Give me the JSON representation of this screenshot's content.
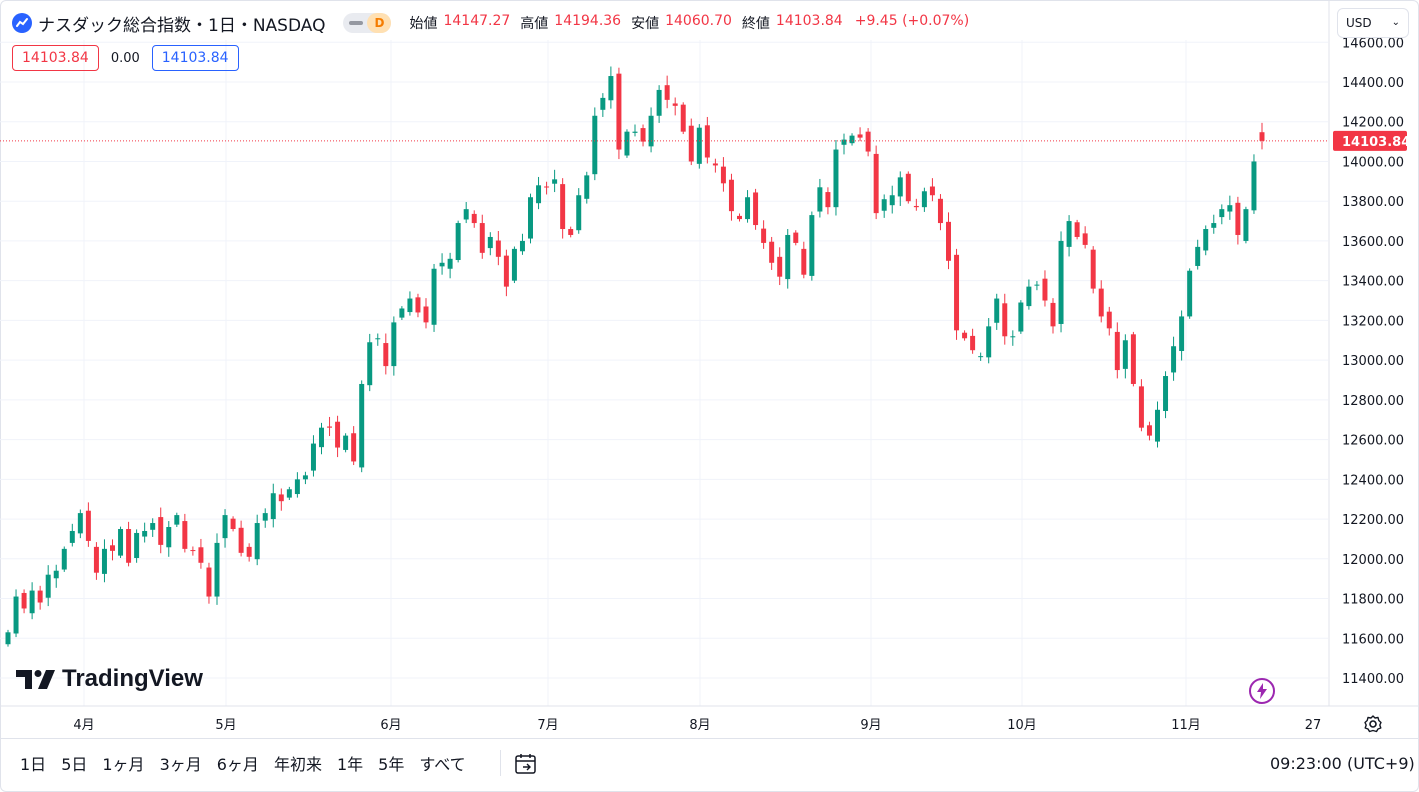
{
  "header": {
    "title": "ナスダック総合指数・1日・NASDAQ",
    "toggle_badge": "D",
    "ohlc": [
      {
        "label": "始値",
        "value": "14147.27"
      },
      {
        "label": "高値",
        "value": "14194.36"
      },
      {
        "label": "安値",
        "value": "14060.70"
      },
      {
        "label": "終値",
        "value": "14103.84"
      }
    ],
    "change": "+9.45 (+0.07%)",
    "currency": "USD"
  },
  "row2": {
    "bid": "14103.84",
    "spread": "0.00",
    "ask": "14103.84"
  },
  "branding": {
    "logo_text": "TradingView"
  },
  "bottom": {
    "ranges": [
      "1日",
      "5日",
      "1ヶ月",
      "3ヶ月",
      "6ヶ月",
      "年初来",
      "1年",
      "5年",
      "すべて"
    ],
    "clock": "09:23:00 (UTC+9)"
  },
  "colors": {
    "up": "#089981",
    "down": "#f23645",
    "grid": "#f0f3fa",
    "accent": "#2962ff"
  },
  "icons": {
    "logo": "tradingview-logo-icon",
    "calendar": "calendar-goto-icon",
    "settings": "gear-icon",
    "bolt": "lightning-icon"
  },
  "chart_data": {
    "type": "candlestick",
    "y_ticks": [
      14600,
      14400,
      14200,
      14000,
      13800,
      13600,
      13400,
      13200,
      13000,
      12800,
      12600,
      12400,
      12200,
      12000,
      11800,
      11600,
      11400
    ],
    "ylim": [
      11280,
      14680
    ],
    "current_price": "14103.84",
    "x_labels": [
      "4月",
      "5月",
      "6月",
      "7月",
      "8月",
      "9月",
      "10月",
      "11月",
      "27"
    ],
    "grid": true,
    "closes": [
      11630,
      11810,
      11750,
      11840,
      11780,
      11920,
      11940,
      12050,
      12140,
      12230,
      12090,
      11930,
      12050,
      12040,
      12150,
      11980,
      12130,
      12140,
      12180,
      12070,
      12160,
      12220,
      12050,
      12040,
      11980,
      11810,
      12080,
      12220,
      12150,
      12030,
      12010,
      12180,
      12230,
      12330,
      12290,
      12350,
      12400,
      12420,
      12580,
      12660,
      12660,
      12560,
      12620,
      12490,
      12880,
      13090,
      13110,
      12970,
      13190,
      13260,
      13310,
      13240,
      13190,
      13460,
      13490,
      13510,
      13690,
      13760,
      13690,
      13540,
      13620,
      13520,
      13370,
      13560,
      13600,
      13820,
      13880,
      13870,
      13910,
      13660,
      13630,
      13830,
      13930,
      14230,
      14320,
      14430,
      14060,
      14150,
      14150,
      14100,
      14230,
      14360,
      14310,
      14280,
      14150,
      14000,
      14170,
      14020,
      13980,
      13890,
      13750,
      13710,
      13820,
      13680,
      13590,
      13490,
      13420,
      13630,
      13590,
      13430,
      13730,
      13870,
      13770,
      14060,
      14110,
      14130,
      14120,
      14050,
      13740,
      13810,
      13830,
      13920,
      13800,
      13770,
      13850,
      13830,
      13690,
      13500,
      13150,
      13110,
      13050,
      13020,
      13170,
      13310,
      13120,
      13120,
      13290,
      13370,
      13380,
      13300,
      13170,
      13600,
      13700,
      13620,
      13580,
      13360,
      13220,
      13160,
      12950,
      13100,
      12880,
      12660,
      12620,
      12750,
      12920,
      13070,
      13220,
      13450,
      13570,
      13660,
      13690,
      13760,
      13780,
      13630,
      13760,
      14000,
      14103.84
    ]
  }
}
